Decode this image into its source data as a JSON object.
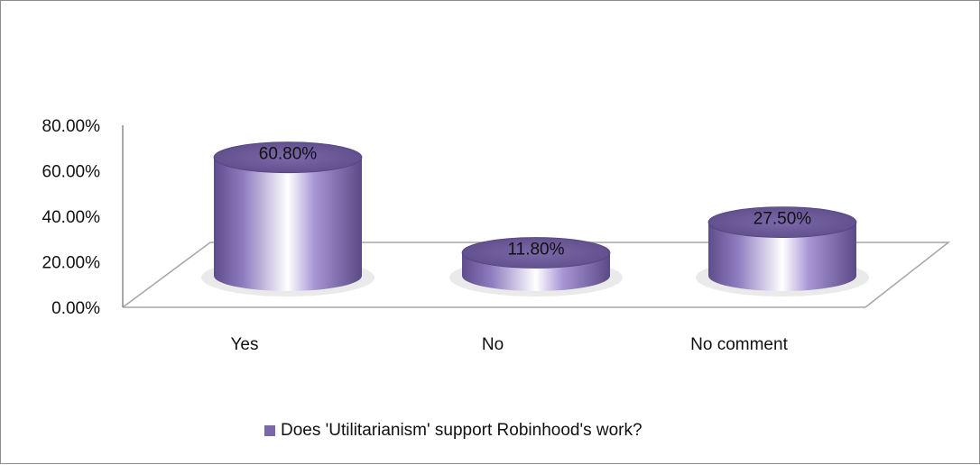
{
  "chart_data": {
    "type": "bar",
    "style": "3d-cylinder",
    "categories": [
      "Yes",
      "No",
      "No comment"
    ],
    "series": [
      {
        "name": "Does 'Utilitarianism' support  Robinhood's work?",
        "values": [
          60.8,
          11.8,
          27.5
        ],
        "labels": [
          "60.80%",
          "11.80%",
          "27.50%"
        ],
        "color": "#7b68a8"
      }
    ],
    "yticks": [
      "0.00%",
      "20.00%",
      "40.00%",
      "60.00%",
      "80.00%"
    ],
    "ylim": [
      0,
      80
    ],
    "grid": false,
    "legend": "bottom"
  }
}
